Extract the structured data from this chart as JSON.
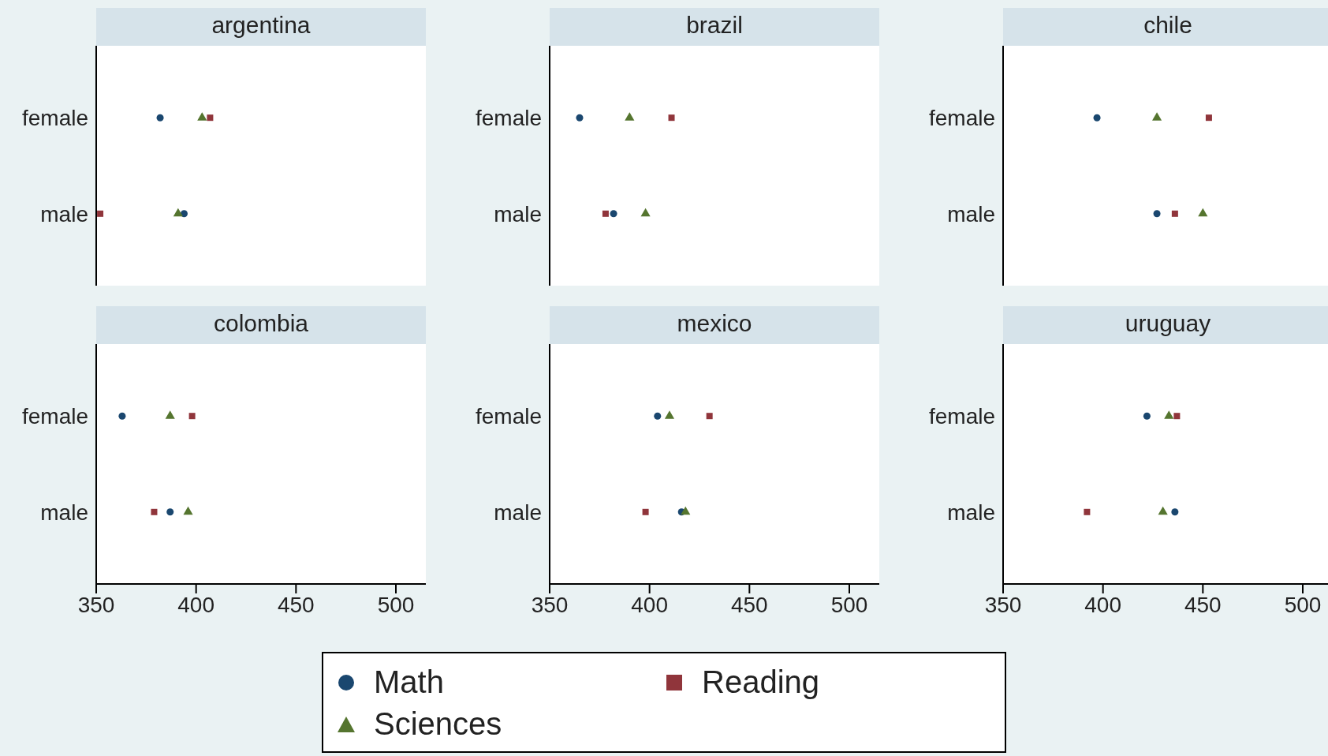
{
  "chart_data": [
    {
      "type": "scatter",
      "title": "argentina",
      "orientation": "horizontal",
      "categories": [
        "female",
        "male"
      ],
      "xlim": [
        350,
        515
      ],
      "xticks": [
        350,
        400,
        450,
        500
      ],
      "tick_labels": "y",
      "grid": false,
      "legend": "bottom",
      "series": [
        {
          "name": "Math",
          "color": "#1a476f",
          "marker": "circle",
          "values": [
            382,
            394
          ]
        },
        {
          "name": "Reading",
          "color": "#90353b",
          "marker": "square",
          "values": [
            407,
            352
          ]
        },
        {
          "name": "Sciences",
          "color": "#55752f",
          "marker": "triangle",
          "values": [
            403,
            391
          ]
        }
      ]
    },
    {
      "type": "scatter",
      "title": "brazil",
      "orientation": "horizontal",
      "categories": [
        "female",
        "male"
      ],
      "xlim": [
        350,
        515
      ],
      "xticks": [
        350,
        400,
        450,
        500
      ],
      "tick_labels": "y",
      "grid": false,
      "legend": false,
      "series": [
        {
          "color": "#1a476f",
          "marker": "circle",
          "values": [
            365,
            382
          ]
        },
        {
          "color": "#90353b",
          "marker": "square",
          "values": [
            411,
            378
          ]
        },
        {
          "color": "#55752f",
          "marker": "triangle",
          "values": [
            390,
            398
          ]
        }
      ]
    },
    {
      "type": "scatter",
      "title": "chile",
      "orientation": "horizontal",
      "categories": [
        "female",
        "male"
      ],
      "xlim": [
        350,
        515
      ],
      "xticks": [
        350,
        400,
        450,
        500
      ],
      "tick_labels": "y",
      "grid": false,
      "legend": false,
      "series": [
        {
          "color": "#1a476f",
          "marker": "circle",
          "values": [
            397,
            427
          ]
        },
        {
          "color": "#90353b",
          "marker": "square",
          "values": [
            453,
            436
          ]
        },
        {
          "color": "#55752f",
          "marker": "triangle",
          "values": [
            427,
            450
          ]
        }
      ]
    },
    {
      "type": "scatter",
      "title": "colombia",
      "orientation": "horizontal",
      "categories": [
        "female",
        "male"
      ],
      "xlim": [
        350,
        515
      ],
      "xticks": [
        350,
        400,
        450,
        500
      ],
      "grid": false,
      "legend": false,
      "series": [
        {
          "color": "#1a476f",
          "marker": "circle",
          "values": [
            363,
            387
          ]
        },
        {
          "color": "#90353b",
          "marker": "square",
          "values": [
            398,
            379
          ]
        },
        {
          "color": "#55752f",
          "marker": "triangle",
          "values": [
            387,
            396
          ]
        }
      ]
    },
    {
      "type": "scatter",
      "title": "mexico",
      "orientation": "horizontal",
      "categories": [
        "female",
        "male"
      ],
      "xlim": [
        350,
        515
      ],
      "xticks": [
        350,
        400,
        450,
        500
      ],
      "grid": false,
      "legend": false,
      "series": [
        {
          "color": "#1a476f",
          "marker": "circle",
          "values": [
            404,
            416
          ]
        },
        {
          "color": "#90353b",
          "marker": "square",
          "values": [
            430,
            398
          ]
        },
        {
          "color": "#55752f",
          "marker": "triangle",
          "values": [
            410,
            418
          ]
        }
      ]
    },
    {
      "type": "scatter",
      "title": "uruguay",
      "orientation": "horizontal",
      "categories": [
        "female",
        "male"
      ],
      "xlim": [
        350,
        515
      ],
      "xticks": [
        350,
        400,
        450,
        500
      ],
      "grid": false,
      "legend": false,
      "series": [
        {
          "color": "#1a476f",
          "marker": "circle",
          "values": [
            422,
            436
          ]
        },
        {
          "color": "#90353b",
          "marker": "square",
          "values": [
            437,
            392
          ]
        },
        {
          "color": "#55752f",
          "marker": "triangle",
          "values": [
            433,
            430
          ]
        }
      ]
    }
  ]
}
